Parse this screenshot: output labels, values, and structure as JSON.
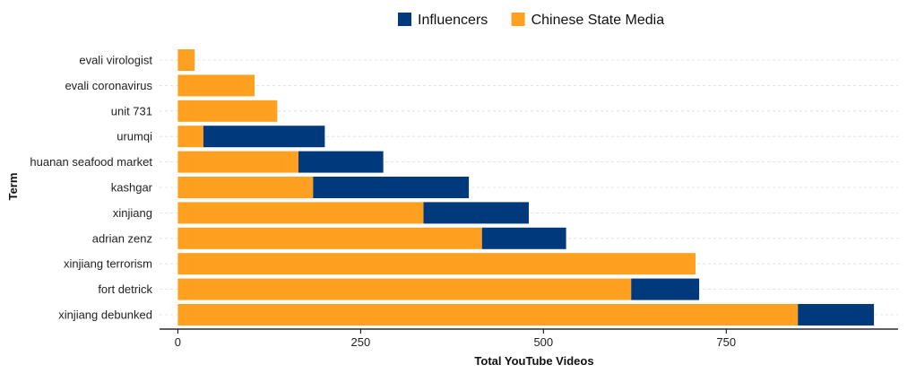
{
  "chart_data": {
    "type": "bar",
    "orientation": "horizontal",
    "stacked": true,
    "xlabel": "Total YouTube Videos",
    "ylabel": "Term",
    "xlim": [
      -25,
      985
    ],
    "xticks": [
      0,
      250,
      500,
      750
    ],
    "grid": "horizontal dashed",
    "legend_position": "top",
    "categories": [
      "evali virologist",
      "evali coronavirus",
      "unit 731",
      "urumqi",
      "huanan seafood market",
      "kashgar",
      "xinjiang",
      "adrian zenz",
      "xinjiang terrorism",
      "fort detrick",
      "xinjiang debunked"
    ],
    "series": [
      {
        "name": "Chinese State Media",
        "color": "#FFA020",
        "values": [
          23,
          105,
          136,
          35,
          165,
          185,
          336,
          416,
          708,
          620,
          848
        ]
      },
      {
        "name": "Influencers",
        "color": "#003A7D",
        "values": [
          0,
          0,
          0,
          166,
          116,
          213,
          144,
          115,
          0,
          93,
          104
        ]
      }
    ],
    "legend": [
      {
        "name": "Influencers",
        "color": "#003A7D"
      },
      {
        "name": "Chinese State Media",
        "color": "#FFA020"
      }
    ]
  }
}
